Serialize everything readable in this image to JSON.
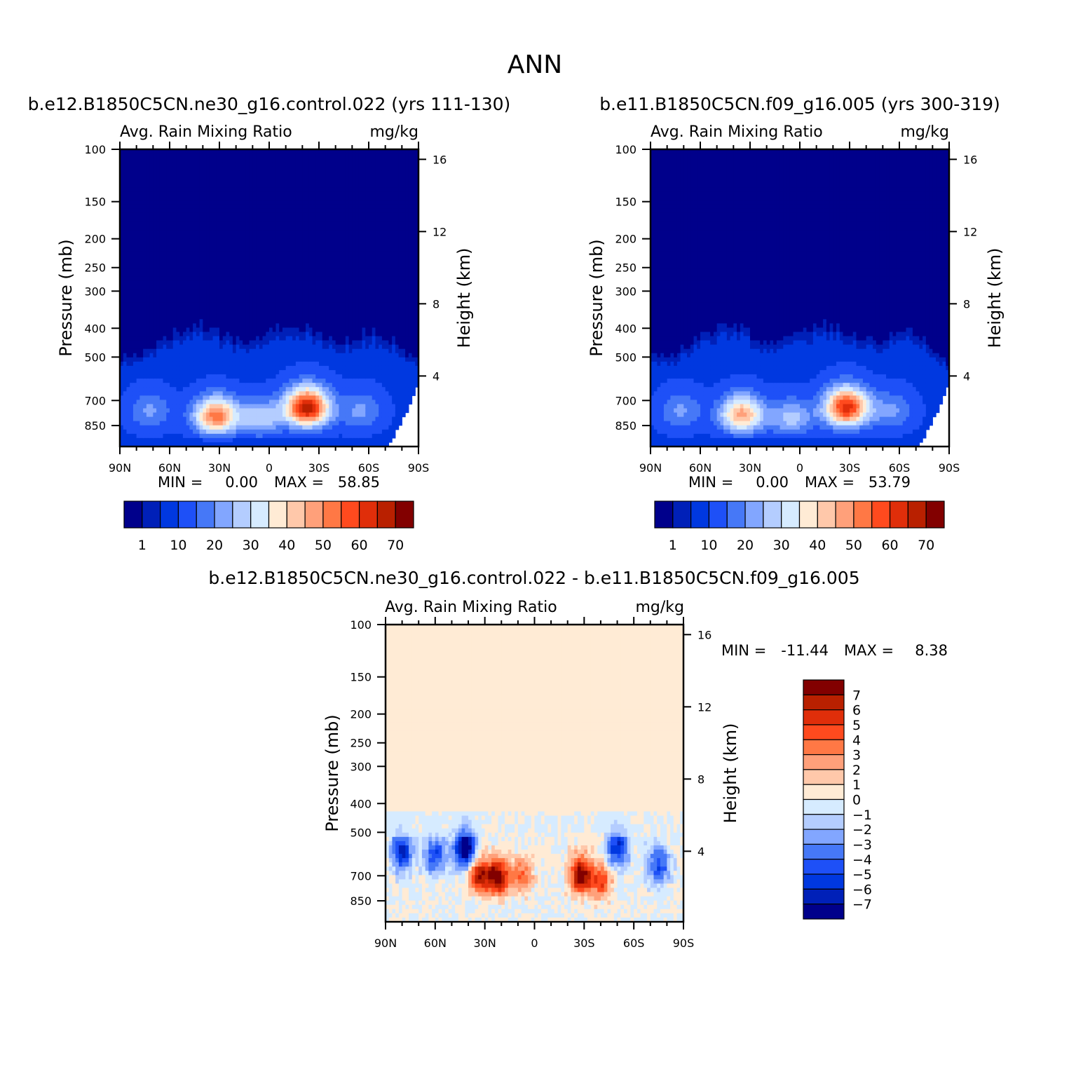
{
  "figure": {
    "title": "ANN"
  },
  "chart_data": [
    {
      "type": "heatmap",
      "id": "p1",
      "title": "b.e12.B1850C5CN.ne30_g16.control.022 (yrs 111-130)",
      "variable": "Avg. Rain Mixing Ratio",
      "units": "mg/kg",
      "ylabel": "Pressure (mb)",
      "ylabel2": "Height (km)",
      "x_ticks": [
        "90N",
        "60N",
        "30N",
        "0",
        "30S",
        "60S",
        "90S"
      ],
      "y_ticks": [
        "100",
        "150",
        "200",
        "250",
        "300",
        "400",
        "500",
        "700",
        "850"
      ],
      "y_ticks_values": [
        100,
        150,
        200,
        250,
        300,
        400,
        500,
        700,
        850
      ],
      "y2_ticks": [
        "16",
        "12",
        "8",
        "4"
      ],
      "y2_ticks_values": [
        16,
        12,
        8,
        4
      ],
      "xlim": [
        90,
        -90
      ],
      "ylim": [
        1000,
        100
      ],
      "stats": {
        "min_label": "MIN =",
        "min": "0.00",
        "max_label": "MAX =",
        "max": "58.85"
      },
      "colorbar": {
        "colors": [
          "#00008b",
          "#0020b8",
          "#0038e0",
          "#1e50f7",
          "#4678f7",
          "#82a6ff",
          "#b4cdff",
          "#d6ebff",
          "#ffebd5",
          "#ffc8aa",
          "#ffa07a",
          "#ff7845",
          "#ff4a1e",
          "#e02e0a",
          "#b92000",
          "#820000"
        ],
        "labels": [
          "1",
          "10",
          "20",
          "30",
          "40",
          "50",
          "60",
          "70"
        ]
      },
      "features": [
        {
          "lat": 32,
          "p": 790,
          "peak": 44
        },
        {
          "lat": -23,
          "p": 740,
          "peak": 58.85
        },
        {
          "lat": 5,
          "p": 800,
          "peak": 20
        },
        {
          "lat": -55,
          "p": 760,
          "peak": 12
        },
        {
          "lat": 72,
          "p": 760,
          "peak": 12
        }
      ]
    },
    {
      "type": "heatmap",
      "id": "p2",
      "title": "b.e11.B1850C5CN.f09_g16.005 (yrs 300-319)",
      "variable": "Avg. Rain Mixing Ratio",
      "units": "mg/kg",
      "ylabel": "Pressure (mb)",
      "ylabel2": "Height (km)",
      "x_ticks": [
        "90N",
        "60N",
        "30N",
        "0",
        "30S",
        "60S",
        "90S"
      ],
      "y_ticks": [
        "100",
        "150",
        "200",
        "250",
        "300",
        "400",
        "500",
        "700",
        "850"
      ],
      "y_ticks_values": [
        100,
        150,
        200,
        250,
        300,
        400,
        500,
        700,
        850
      ],
      "y2_ticks": [
        "16",
        "12",
        "8",
        "4"
      ],
      "y2_ticks_values": [
        16,
        12,
        8,
        4
      ],
      "xlim": [
        90,
        -90
      ],
      "ylim": [
        1000,
        100
      ],
      "stats": {
        "min_label": "MIN =",
        "min": "0.00",
        "max_label": "MAX =",
        "max": "53.79"
      },
      "colorbar": {
        "colors": [
          "#00008b",
          "#0020b8",
          "#0038e0",
          "#1e50f7",
          "#4678f7",
          "#82a6ff",
          "#b4cdff",
          "#d6ebff",
          "#ffebd5",
          "#ffc8aa",
          "#ffa07a",
          "#ff7845",
          "#ff4a1e",
          "#e02e0a",
          "#b92000",
          "#820000"
        ],
        "labels": [
          "1",
          "10",
          "20",
          "30",
          "40",
          "50",
          "60",
          "70"
        ]
      },
      "features": [
        {
          "lat": 35,
          "p": 780,
          "peak": 38
        },
        {
          "lat": -28,
          "p": 740,
          "peak": 53.79
        },
        {
          "lat": 5,
          "p": 800,
          "peak": 18
        },
        {
          "lat": -55,
          "p": 760,
          "peak": 12
        },
        {
          "lat": 72,
          "p": 760,
          "peak": 12
        }
      ]
    },
    {
      "type": "heatmap",
      "id": "p3",
      "title": "b.e12.B1850C5CN.ne30_g16.control.022 - b.e11.B1850C5CN.f09_g16.005",
      "variable": "Avg. Rain Mixing Ratio",
      "units": "mg/kg",
      "ylabel": "Pressure (mb)",
      "ylabel2": "Height (km)",
      "x_ticks": [
        "90N",
        "60N",
        "30N",
        "0",
        "30S",
        "60S",
        "90S"
      ],
      "y_ticks": [
        "100",
        "150",
        "200",
        "250",
        "300",
        "400",
        "500",
        "700",
        "850"
      ],
      "y_ticks_values": [
        100,
        150,
        200,
        250,
        300,
        400,
        500,
        700,
        850
      ],
      "y2_ticks": [
        "16",
        "12",
        "8",
        "4"
      ],
      "y2_ticks_values": [
        16,
        12,
        8,
        4
      ],
      "xlim": [
        90,
        -90
      ],
      "ylim": [
        1000,
        100
      ],
      "stats": {
        "min_label": "MIN =",
        "min": "-11.44",
        "max_label": "MAX =",
        "max": "8.38"
      },
      "colorbar": {
        "colors": [
          "#00008b",
          "#0020b8",
          "#0038e0",
          "#1e50f7",
          "#4678f7",
          "#82a6ff",
          "#b4cdff",
          "#d6ebff",
          "#ffebd5",
          "#ffc8aa",
          "#ffa07a",
          "#ff7845",
          "#ff4a1e",
          "#e02e0a",
          "#b92000",
          "#820000"
        ],
        "labels": [
          "7",
          "6",
          "5",
          "4",
          "3",
          "2",
          "1",
          "0",
          "-1",
          "-2",
          "-3",
          "-4",
          "-5",
          "-6",
          "-7"
        ]
      },
      "features": [
        {
          "lat": 33,
          "p": 700,
          "peak": 7
        },
        {
          "lat": 22,
          "p": 710,
          "peak": 8
        },
        {
          "lat": -28,
          "p": 700,
          "peak": 8.38
        },
        {
          "lat": -40,
          "p": 730,
          "peak": 5
        },
        {
          "lat": 8,
          "p": 700,
          "peak": 4
        },
        {
          "lat": 42,
          "p": 560,
          "peak": -9
        },
        {
          "lat": 80,
          "p": 580,
          "peak": -6
        },
        {
          "lat": 60,
          "p": 600,
          "peak": -5
        },
        {
          "lat": -50,
          "p": 560,
          "peak": -6
        },
        {
          "lat": -75,
          "p": 650,
          "peak": -5
        }
      ]
    }
  ]
}
